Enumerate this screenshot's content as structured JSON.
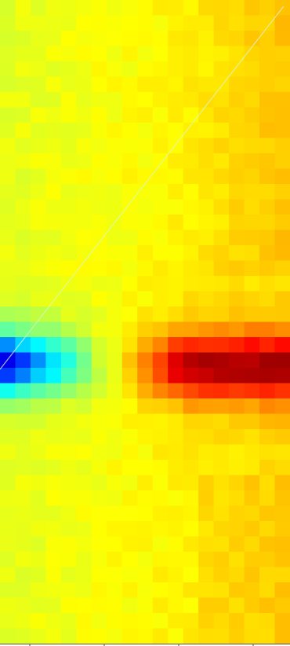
{
  "chart_data": {
    "type": "heatmap",
    "title": "",
    "xlabel": "",
    "ylabel": "",
    "grid": false,
    "legend": "none",
    "colormap": "jet",
    "value_range": [
      0,
      1
    ],
    "columns": 19,
    "rows": 42,
    "x_ticks": 4,
    "features": [
      {
        "kind": "background",
        "value": 0.62,
        "right_gradient": 0.05
      },
      {
        "kind": "low-band",
        "row_start": 21,
        "row_end": 25,
        "col_start": 0,
        "col_end": 6,
        "min_value": 0.24
      },
      {
        "kind": "high-band",
        "row_start": 21,
        "row_end": 26,
        "col_start": 8,
        "col_end": 18,
        "max_value": 0.9
      },
      {
        "kind": "diagonal-line",
        "color": "#d8f5d0"
      }
    ],
    "colors": {
      "line": "#d8f5d0",
      "axis": "#555555",
      "background": "#ffffff"
    }
  }
}
